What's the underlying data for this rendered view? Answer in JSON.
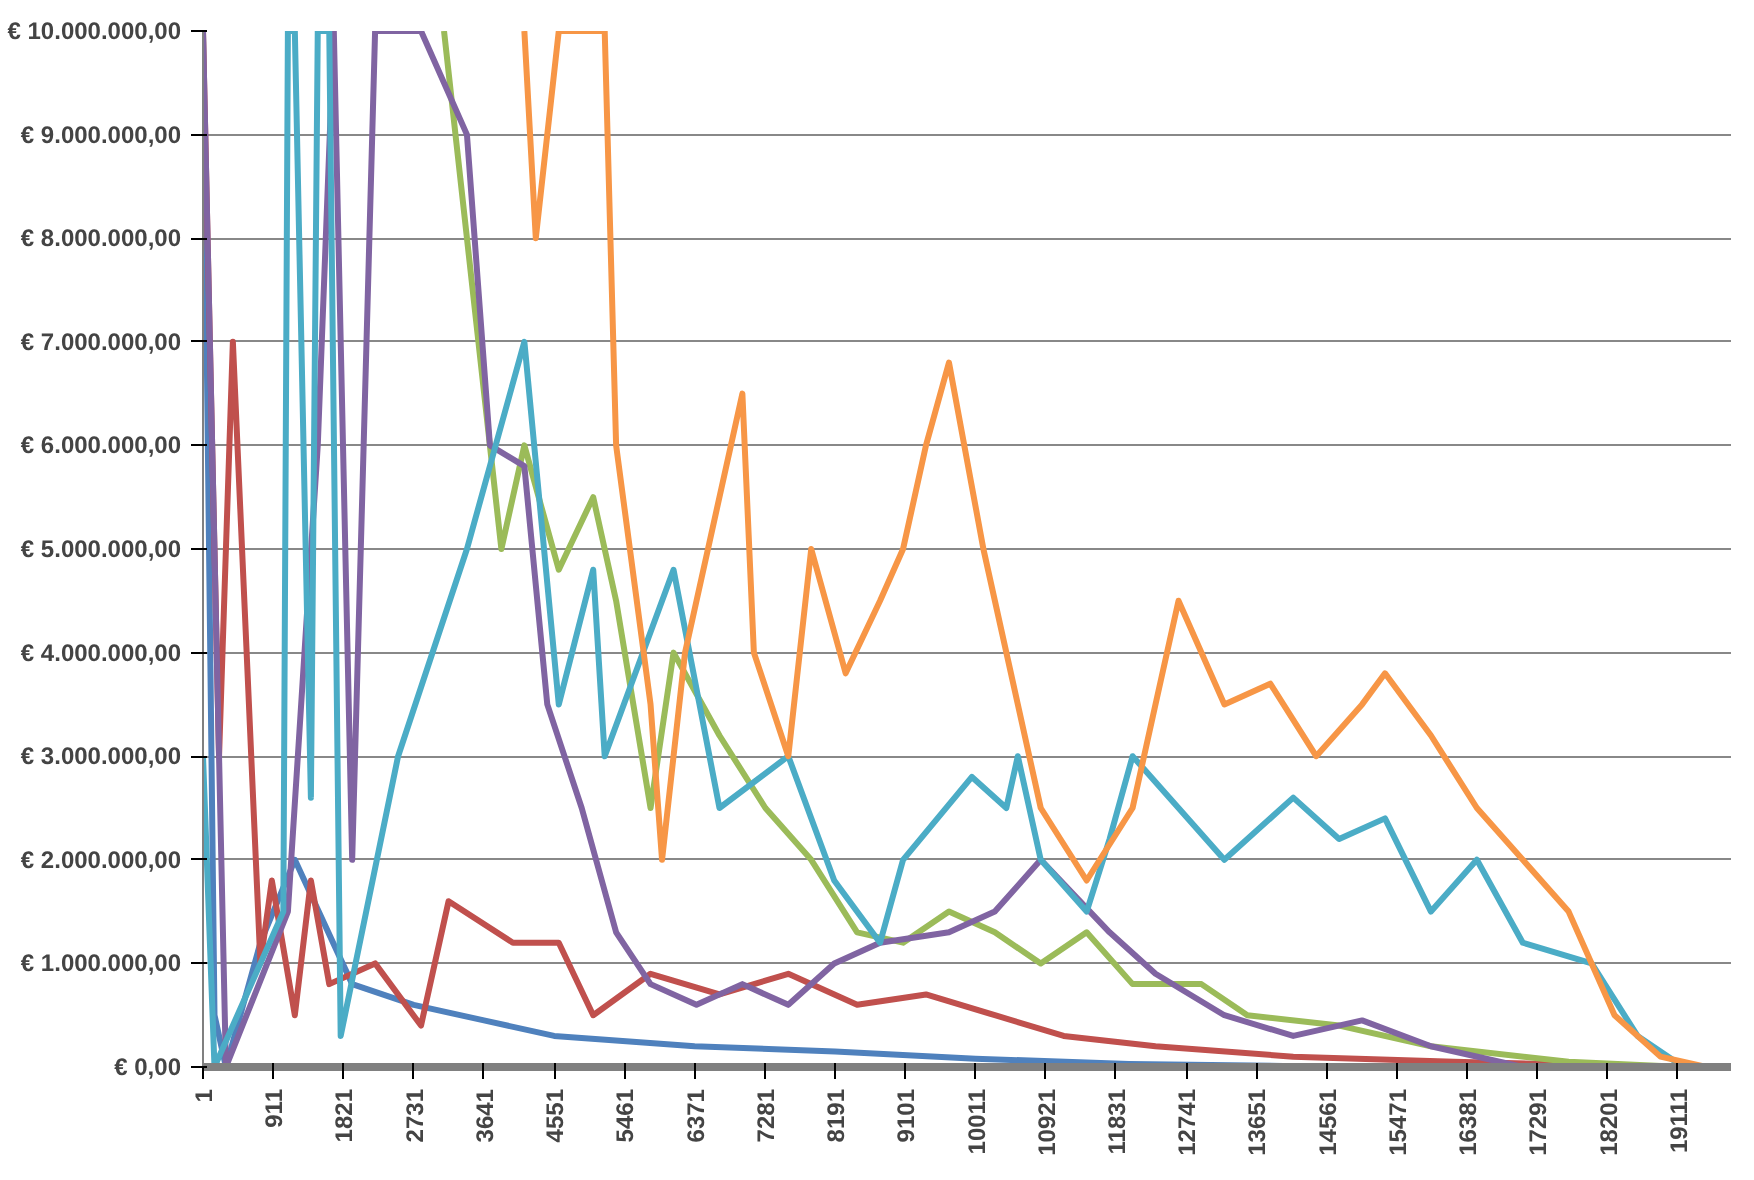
{
  "chart_data": {
    "type": "line",
    "xlim": [
      1,
      19800
    ],
    "ylim": [
      0,
      10000000
    ],
    "xticks": [
      1,
      911,
      1821,
      2731,
      3641,
      4551,
      5461,
      6371,
      7281,
      8191,
      9101,
      10011,
      10921,
      11831,
      12741,
      13651,
      14561,
      15471,
      16381,
      17291,
      18201,
      19111
    ],
    "yticks": [
      {
        "value": 0,
        "label": "€ 0,00"
      },
      {
        "value": 1000000,
        "label": "€ 1.000.000,00"
      },
      {
        "value": 2000000,
        "label": "€ 2.000.000,00"
      },
      {
        "value": 3000000,
        "label": "€ 3.000.000,00"
      },
      {
        "value": 4000000,
        "label": "€ 4.000.000,00"
      },
      {
        "value": 5000000,
        "label": "€ 5.000.000,00"
      },
      {
        "value": 6000000,
        "label": "€ 6.000.000,00"
      },
      {
        "value": 7000000,
        "label": "€ 7.000.000,00"
      },
      {
        "value": 8000000,
        "label": "€ 8.000.000,00"
      },
      {
        "value": 9000000,
        "label": "€ 9.000.000,00"
      },
      {
        "value": 10000000,
        "label": "€ 10.000.000,00"
      }
    ],
    "grid": "y",
    "line_style": "solid",
    "marker": "none",
    "series": [
      {
        "color": "#4f81bd",
        "x": [
          1,
          150,
          298,
          745,
          1191,
          1934,
          2731,
          3641,
          4551,
          6371,
          8191,
          10011,
          12000,
          14000,
          19481
        ],
        "values": [
          10000000,
          500000,
          0,
          1200000,
          2000000,
          800000,
          600000,
          450000,
          300000,
          200000,
          150000,
          80000,
          30000,
          10000,
          0
        ]
      },
      {
        "color": "#c0504d",
        "x": [
          1,
          209,
          298,
          388,
          745,
          893,
          1191,
          1399,
          1637,
          2231,
          2826,
          3183,
          4016,
          4611,
          5057,
          5800,
          6693,
          7585,
          8477,
          9369,
          10261,
          11154,
          12343,
          14128,
          16210,
          19183
        ],
        "values": [
          10000000,
          3000000,
          5000000,
          7000000,
          1000000,
          1800000,
          500000,
          1800000,
          800000,
          1000000,
          400000,
          1600000,
          1200000,
          1200000,
          500000,
          900000,
          700000,
          900000,
          600000,
          700000,
          500000,
          300000,
          200000,
          100000,
          50000,
          0
        ]
      },
      {
        "color": "#9bbb59",
        "x": [
          3124,
          3421,
          3867,
          4165,
          4611,
          5057,
          5354,
          5800,
          6098,
          6693,
          7288,
          7882,
          8477,
          9072,
          9667,
          10261,
          10856,
          11451,
          12046,
          12938,
          13533,
          14722,
          15912,
          17696,
          19183
        ],
        "values": [
          10000000,
          8000000,
          5000000,
          6000000,
          4800000,
          5500000,
          4500000,
          2500000,
          4000000,
          3200000,
          2500000,
          2000000,
          1300000,
          1200000,
          1500000,
          1300000,
          1000000,
          1300000,
          800000,
          800000,
          500000,
          400000,
          200000,
          50000,
          0
        ]
      },
      {
        "color": "#8064a2",
        "x": [
          1,
          298,
          1101,
          1488,
          1696,
          1934,
          2231,
          2826,
          3421,
          3719,
          4165,
          4462,
          4908,
          5354,
          5800,
          6395,
          6990,
          7585,
          8180,
          8774,
          9667,
          10261,
          10856,
          11748,
          12343,
          13235,
          14128,
          15020,
          15912,
          17102,
          19183
        ],
        "values": [
          10000000,
          0,
          1500000,
          6000000,
          10000000,
          2000000,
          10000000,
          10000000,
          9000000,
          6000000,
          5800000,
          3500000,
          2500000,
          1300000,
          800000,
          600000,
          800000,
          600000,
          1000000,
          1200000,
          1300000,
          1500000,
          2000000,
          1300000,
          900000,
          500000,
          300000,
          450000,
          200000,
          0,
          0
        ]
      },
      {
        "color": "#4bacc6",
        "x": [
          1,
          150,
          1042,
          1101,
          1191,
          1399,
          1488,
          1637,
          1785,
          2529,
          3421,
          4165,
          4611,
          5057,
          5206,
          6098,
          6693,
          7585,
          8180,
          8774,
          9072,
          9964,
          10410,
          10559,
          10856,
          11451,
          11748,
          12046,
          12641,
          13235,
          14128,
          14722,
          15317,
          15912,
          16507,
          17102,
          17994,
          18589,
          19183
        ],
        "values": [
          3000000,
          0,
          1500000,
          10000000,
          10000000,
          2600000,
          10000000,
          10000000,
          300000,
          3000000,
          5000000,
          7000000,
          3500000,
          4800000,
          3000000,
          4800000,
          2500000,
          3000000,
          1800000,
          1200000,
          2000000,
          2800000,
          2500000,
          3000000,
          2000000,
          1500000,
          2200000,
          3000000,
          2500000,
          2000000,
          2600000,
          2200000,
          2400000,
          1500000,
          2000000,
          1200000,
          1000000,
          300000,
          0
        ]
      },
      {
        "color": "#f79646",
        "x": [
          4165,
          4313,
          4611,
          5206,
          5354,
          5800,
          5949,
          6247,
          6990,
          7139,
          7585,
          7882,
          8328,
          8774,
          9072,
          9369,
          9667,
          10113,
          10559,
          10856,
          11451,
          12046,
          12343,
          12641,
          13235,
          13830,
          14425,
          15020,
          15317,
          15912,
          16507,
          17102,
          17696,
          18291,
          18886,
          19481
        ],
        "values": [
          10000000,
          8000000,
          10000000,
          10000000,
          6000000,
          3500000,
          2000000,
          4000000,
          6500000,
          4000000,
          3000000,
          5000000,
          3800000,
          4500000,
          5000000,
          6000000,
          6800000,
          5000000,
          3500000,
          2500000,
          1800000,
          2500000,
          3500000,
          4500000,
          3500000,
          3700000,
          3000000,
          3500000,
          3800000,
          3200000,
          2500000,
          2000000,
          1500000,
          500000,
          100000,
          0
        ]
      }
    ]
  }
}
